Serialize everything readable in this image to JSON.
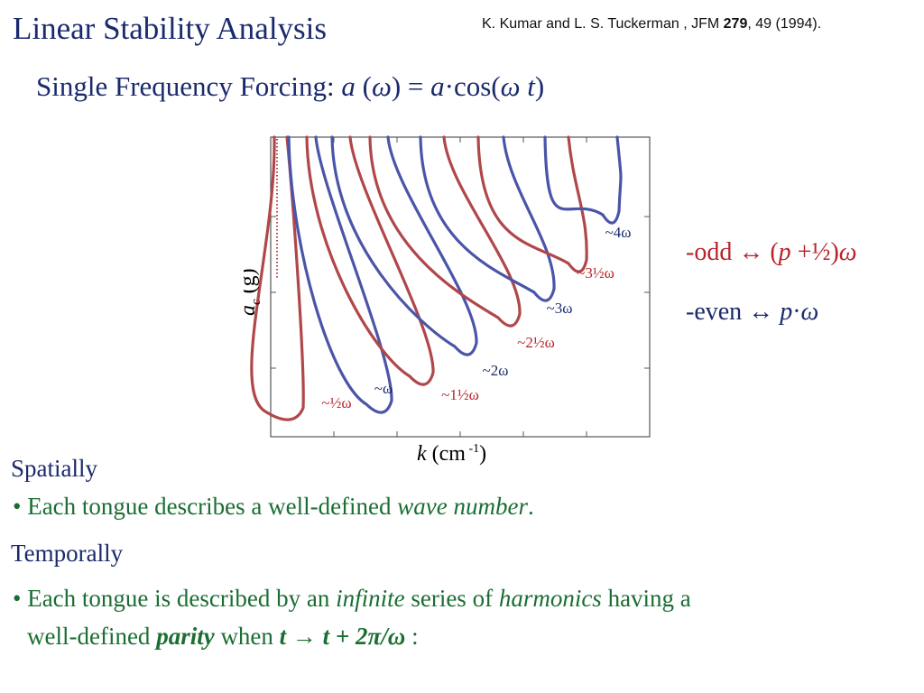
{
  "slide": {
    "title": "Linear Stability Analysis",
    "citation": {
      "authors": "K. Kumar and L. S. Tuckerman , JFM ",
      "volume": "279",
      "rest": ", 49 (1994)."
    },
    "subtitle": {
      "prefix": "Single Frequency Forcing: ",
      "eq_a": "a",
      "eq_open": " (",
      "eq_omega": "ω",
      "eq_mid": ") = ",
      "eq_a2": "a",
      "eq_cos": "·cos(",
      "eq_omega2": "ω",
      "eq_t": " t",
      "eq_close": ")"
    }
  },
  "legend": {
    "odd": {
      "dash": "-",
      "label": "odd ↔ (",
      "p": "p",
      "frac": " +½)",
      "omega": "ω",
      "color": "#b8232a"
    },
    "even": {
      "dash": "-",
      "label": "even ↔ ",
      "p": "p",
      "dot": "·",
      "omega": "ω",
      "color": "#1a2a6c"
    }
  },
  "text": {
    "spatially": "Spatially",
    "bullet1": {
      "mark": "• ",
      "text": "Each tongue describes a well-defined ",
      "em": "wave number",
      "end": "."
    },
    "temporally": "Temporally",
    "bullet2": {
      "mark": "• ",
      "text": "Each tongue is described  by an ",
      "em1": "infinite",
      "mid": " series of ",
      "em2": "harmonics",
      "end": " having a"
    },
    "bullet2b": {
      "text": "well-defined ",
      "parity": "parity",
      "when": " when ",
      "formula": "t → t + 2π/ω",
      "end": " :"
    }
  },
  "chart_data": {
    "type": "line",
    "title": "",
    "xlabel_var": "k",
    "xlabel_unit": " (cm",
    "xlabel_sup": " -1",
    "xlabel_end": ")",
    "ylabel_var": "a",
    "ylabel_sub": "c",
    "ylabel_unit": " (g)",
    "grid": false,
    "colors": {
      "odd": "#b0474a",
      "even": "#4a55a8"
    },
    "tongues": [
      {
        "label": "~½ω",
        "parity": "odd"
      },
      {
        "label": "~ω",
        "parity": "even"
      },
      {
        "label": "~1½ω",
        "parity": "odd"
      },
      {
        "label": "~2ω",
        "parity": "even"
      },
      {
        "label": "~2½ω",
        "parity": "odd"
      },
      {
        "label": "~3ω",
        "parity": "even"
      },
      {
        "label": "~3½ω",
        "parity": "odd"
      },
      {
        "label": "~4ω",
        "parity": "even"
      }
    ]
  }
}
